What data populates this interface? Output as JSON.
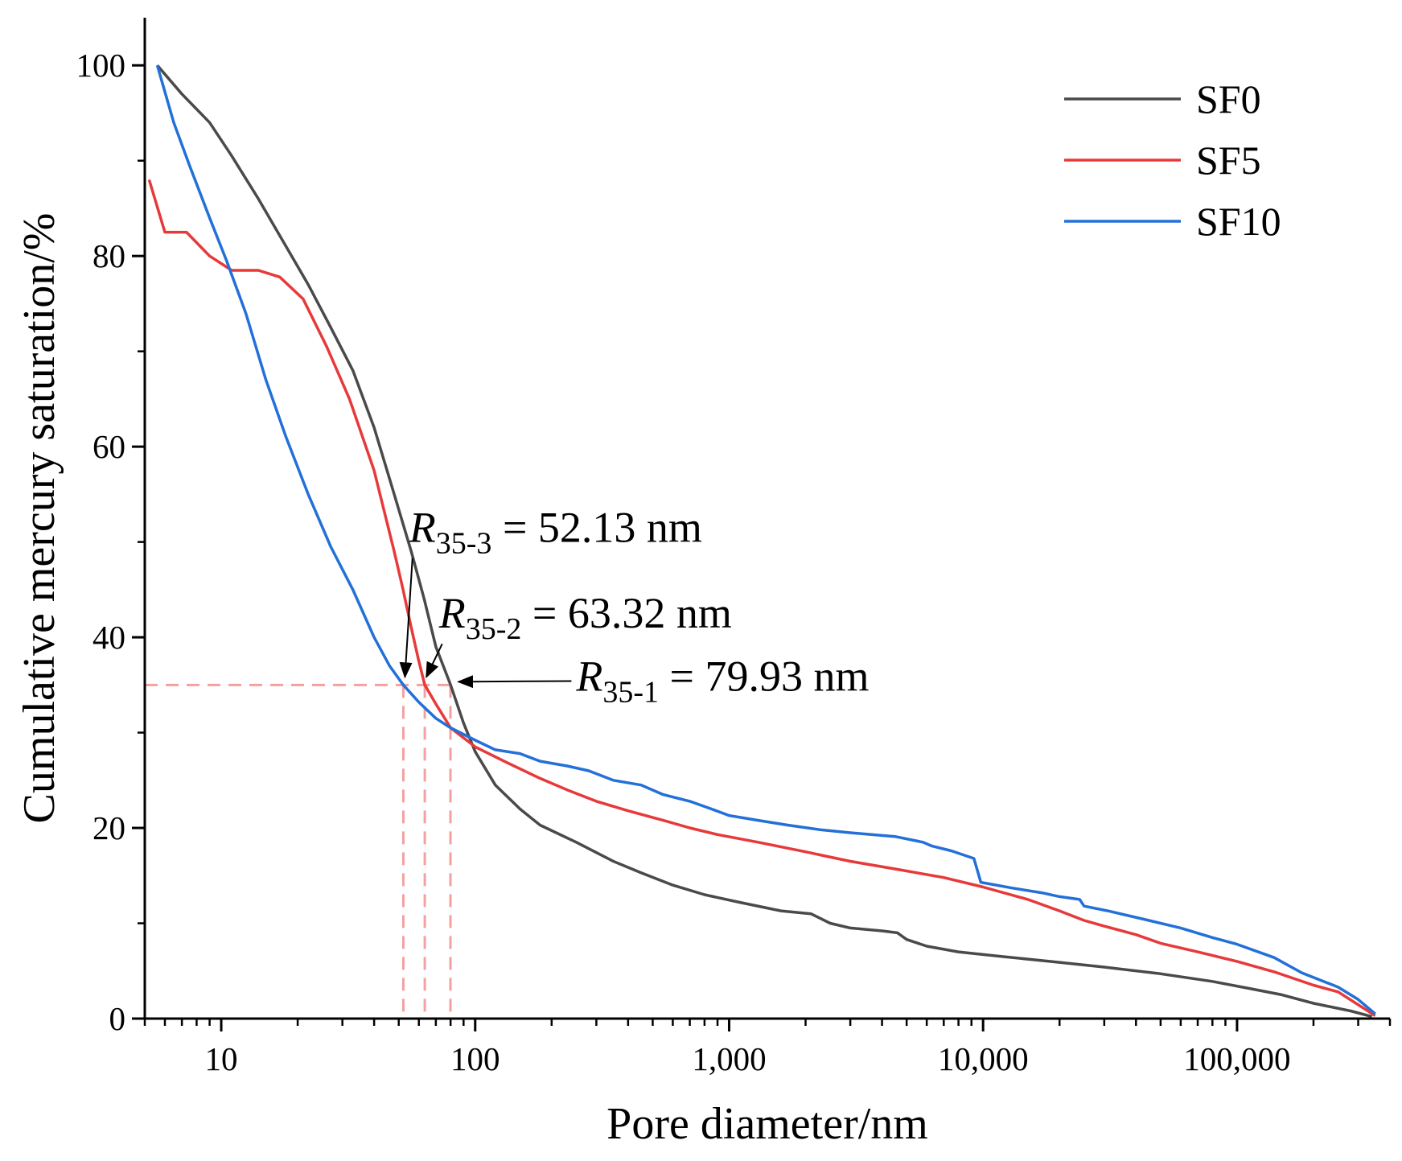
{
  "chart_data": {
    "type": "line",
    "xscale": "log",
    "xlabel": "Pore diameter/nm",
    "ylabel": "Cumulative mercury saturation/%",
    "xlim": [
      5,
      400000
    ],
    "ylim": [
      0,
      105
    ],
    "x_ticks": [
      {
        "value": 10,
        "label": "10"
      },
      {
        "value": 100,
        "label": "100"
      },
      {
        "value": 1000,
        "label": "1,000"
      },
      {
        "value": 10000,
        "label": "10,000"
      },
      {
        "value": 100000,
        "label": "100,000"
      }
    ],
    "y_ticks": [
      {
        "value": 0,
        "label": "0"
      },
      {
        "value": 20,
        "label": "20"
      },
      {
        "value": 40,
        "label": "40"
      },
      {
        "value": 60,
        "label": "60"
      },
      {
        "value": 80,
        "label": "80"
      },
      {
        "value": 100,
        "label": "100"
      }
    ],
    "legend_position": "top-right",
    "series": [
      {
        "name": "SF0",
        "color": "#4a4a4a",
        "points": [
          [
            5.6,
            100
          ],
          [
            7,
            97
          ],
          [
            9,
            94
          ],
          [
            11,
            90.5
          ],
          [
            14,
            86
          ],
          [
            18,
            81
          ],
          [
            22,
            77
          ],
          [
            27,
            72.5
          ],
          [
            33,
            68
          ],
          [
            40,
            62
          ],
          [
            48,
            55
          ],
          [
            56,
            49
          ],
          [
            63,
            44
          ],
          [
            70,
            39
          ],
          [
            80,
            35
          ],
          [
            90,
            31
          ],
          [
            100,
            28
          ],
          [
            120,
            24.5
          ],
          [
            150,
            22
          ],
          [
            180,
            20.3
          ],
          [
            250,
            18.5
          ],
          [
            350,
            16.5
          ],
          [
            450,
            15.3
          ],
          [
            600,
            14
          ],
          [
            800,
            13
          ],
          [
            1100,
            12.2
          ],
          [
            1600,
            11.3
          ],
          [
            2100,
            11
          ],
          [
            2500,
            10
          ],
          [
            3000,
            9.5
          ],
          [
            4000,
            9.2
          ],
          [
            4600,
            9
          ],
          [
            5000,
            8.3
          ],
          [
            6000,
            7.6
          ],
          [
            8000,
            7
          ],
          [
            12000,
            6.5
          ],
          [
            20000,
            5.9
          ],
          [
            30000,
            5.4
          ],
          [
            50000,
            4.7
          ],
          [
            80000,
            3.9
          ],
          [
            110000,
            3.2
          ],
          [
            150000,
            2.5
          ],
          [
            200000,
            1.6
          ],
          [
            280000,
            0.8
          ],
          [
            340000,
            0.2
          ]
        ]
      },
      {
        "name": "SF5",
        "color": "#e8393a",
        "points": [
          [
            5.2,
            88
          ],
          [
            6,
            82.5
          ],
          [
            7.3,
            82.5
          ],
          [
            9,
            80
          ],
          [
            11,
            78.5
          ],
          [
            14,
            78.5
          ],
          [
            17,
            77.8
          ],
          [
            21,
            75.5
          ],
          [
            26,
            70.5
          ],
          [
            32,
            65
          ],
          [
            40,
            57.5
          ],
          [
            48,
            49
          ],
          [
            52,
            45
          ],
          [
            56,
            41
          ],
          [
            60,
            37.5
          ],
          [
            63.32,
            35
          ],
          [
            70,
            33
          ],
          [
            80,
            30.5
          ],
          [
            100,
            28.5
          ],
          [
            130,
            27
          ],
          [
            180,
            25.2
          ],
          [
            230,
            24
          ],
          [
            300,
            22.8
          ],
          [
            400,
            21.8
          ],
          [
            550,
            20.8
          ],
          [
            700,
            20
          ],
          [
            900,
            19.3
          ],
          [
            1300,
            18.5
          ],
          [
            2000,
            17.5
          ],
          [
            3000,
            16.5
          ],
          [
            4500,
            15.7
          ],
          [
            7000,
            14.8
          ],
          [
            10000,
            13.8
          ],
          [
            15000,
            12.5
          ],
          [
            20000,
            11.3
          ],
          [
            25000,
            10.3
          ],
          [
            30000,
            9.7
          ],
          [
            40000,
            8.8
          ],
          [
            50000,
            7.9
          ],
          [
            70000,
            7
          ],
          [
            100000,
            6
          ],
          [
            140000,
            4.9
          ],
          [
            200000,
            3.5
          ],
          [
            250000,
            2.8
          ],
          [
            350000,
            0.3
          ]
        ]
      },
      {
        "name": "SF10",
        "color": "#2370d8",
        "points": [
          [
            5.6,
            100
          ],
          [
            6.5,
            94
          ],
          [
            7.5,
            89.5
          ],
          [
            9,
            84
          ],
          [
            10.5,
            79.5
          ],
          [
            12.5,
            74
          ],
          [
            15,
            67
          ],
          [
            18,
            61
          ],
          [
            22,
            55
          ],
          [
            27,
            49.5
          ],
          [
            33,
            45
          ],
          [
            40,
            40
          ],
          [
            46,
            37
          ],
          [
            52.13,
            35
          ],
          [
            60,
            33.2
          ],
          [
            70,
            31.5
          ],
          [
            80,
            30.5
          ],
          [
            100,
            29.2
          ],
          [
            120,
            28.2
          ],
          [
            150,
            27.8
          ],
          [
            180,
            27
          ],
          [
            230,
            26.5
          ],
          [
            280,
            26
          ],
          [
            350,
            25
          ],
          [
            450,
            24.5
          ],
          [
            550,
            23.5
          ],
          [
            700,
            22.8
          ],
          [
            850,
            22
          ],
          [
            1000,
            21.3
          ],
          [
            1300,
            20.8
          ],
          [
            1700,
            20.3
          ],
          [
            2300,
            19.8
          ],
          [
            3000,
            19.5
          ],
          [
            4500,
            19.1
          ],
          [
            5800,
            18.5
          ],
          [
            6300,
            18.1
          ],
          [
            7500,
            17.6
          ],
          [
            9200,
            16.8
          ],
          [
            9800,
            14.3
          ],
          [
            13000,
            13.7
          ],
          [
            17000,
            13.2
          ],
          [
            20000,
            12.8
          ],
          [
            24000,
            12.5
          ],
          [
            25000,
            11.8
          ],
          [
            31000,
            11.3
          ],
          [
            45000,
            10.3
          ],
          [
            60000,
            9.5
          ],
          [
            80000,
            8.5
          ],
          [
            100000,
            7.8
          ],
          [
            140000,
            6.4
          ],
          [
            180000,
            4.8
          ],
          [
            250000,
            3.3
          ],
          [
            300000,
            2
          ],
          [
            350000,
            0.5
          ]
        ]
      }
    ],
    "reference_lines": {
      "y": 35,
      "x": [
        52.13,
        63.32,
        79.93
      ],
      "color": "#f4a0a0",
      "style": "dashed"
    },
    "annotations": [
      {
        "id": "r35-3",
        "symbol": "R",
        "subscript": "35-3",
        "text": " = 52.13 nm",
        "x": 52.13,
        "y": 35,
        "label_anchor": {
          "x": 55,
          "y": 50
        }
      },
      {
        "id": "r35-2",
        "symbol": "R",
        "subscript": "35-2",
        "text": " = 63.32 nm",
        "x": 63.32,
        "y": 35,
        "label_anchor": {
          "x": 72,
          "y": 41
        }
      },
      {
        "id": "r35-1",
        "symbol": "R",
        "subscript": "35-1",
        "text": " = 79.93 nm",
        "x": 79.93,
        "y": 35,
        "label_anchor": {
          "x": 250,
          "y": 34.4
        }
      }
    ]
  }
}
